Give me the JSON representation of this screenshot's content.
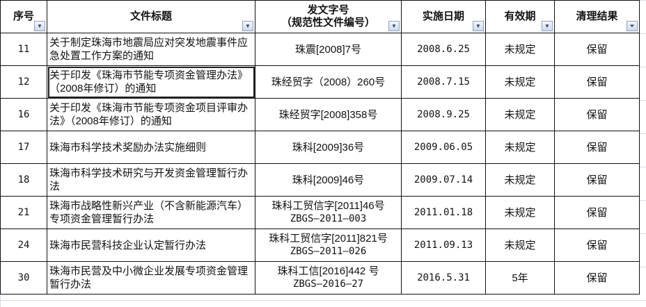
{
  "headers": {
    "seq": "序号",
    "title": "文件标题",
    "docno_line1": "发文字号",
    "docno_line2": "（规范性文件编号）",
    "date": "实施日期",
    "validity": "有效期",
    "result": "清理结果"
  },
  "icons": {
    "filter_dropdown": "dropdown-arrow-icon",
    "filter_active": "filter-funnel-icon"
  },
  "rows": [
    {
      "seq": "11",
      "title": "关于制定珠海市地震局应对突发地震事件应急处置工作方案的通知",
      "docno": "珠震[2008]7号",
      "docno2": "",
      "date": "2008.6.25",
      "validity": "未规定",
      "result": "保留"
    },
    {
      "seq": "12",
      "title": "关于印发《珠海市节能专项资金管理办法》（2008年修订）的通知",
      "docno": "珠经贸字（2008）260号",
      "docno2": "",
      "date": "2008.7.15",
      "validity": "未规定",
      "result": "保留"
    },
    {
      "seq": "16",
      "title": "关于印发《珠海市节能专项资金项目评审办法》（2008年修订）的通知",
      "docno": "珠经贸字[2008]358号",
      "docno2": "",
      "date": "2008.9.25",
      "validity": "未规定",
      "result": "保留"
    },
    {
      "seq": "17",
      "title": "珠海市科学技术奖励办法实施细则",
      "docno": "珠科[2009]36号",
      "docno2": "",
      "date": "2009.06.05",
      "validity": "未规定",
      "result": "保留"
    },
    {
      "seq": "18",
      "title": "珠海市科学技术研究与开发资金管理暂行办法",
      "docno": "珠科[2009]46号",
      "docno2": "",
      "date": "2009.07.14",
      "validity": "未规定",
      "result": "保留"
    },
    {
      "seq": "21",
      "title": "珠海市战略性新兴产业（不含新能源汽车）专项资金管理暂行办法",
      "docno": "珠科工贸信字[2011]46号",
      "docno2": "ZBGS—2011—003",
      "date": "2011.01.18",
      "validity": "未规定",
      "result": "保留"
    },
    {
      "seq": "24",
      "title": "珠海市民营科技企业认定暂行办法",
      "docno": "珠科工贸信字[2011]821号",
      "docno2": "ZBGS—2011—026",
      "date": "2011.09.13",
      "validity": "未规定",
      "result": "保留"
    },
    {
      "seq": "30",
      "title": "珠海市民营及中小微企业发展专项资金管理暂行办法",
      "docno": "珠科工信[2016]442 号",
      "docno2": "ZBGS—2016—27",
      "date": "2016.5.31",
      "validity": "5年",
      "result": "保留"
    }
  ]
}
